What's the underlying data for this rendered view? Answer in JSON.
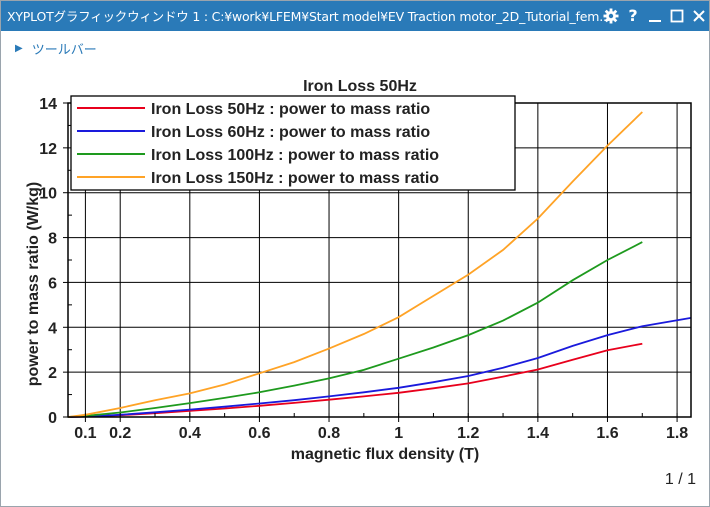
{
  "window": {
    "title": "XYPLOTグラフィックウィンドウ 1 : C:¥work¥LFEM¥Start model¥EV Traction motor_2D_Tutorial_fem...",
    "controls": {
      "settings_icon": "gear-icon",
      "help_label": "?",
      "minimize_icon": "minimize-icon",
      "maximize_icon": "maximize-icon",
      "close_icon": "close-icon"
    }
  },
  "toolbar": {
    "label": "ツールバー"
  },
  "pager": "1 / 1",
  "colors": {
    "titlebar": "#2a7ab8",
    "50Hz": "#e8001c",
    "60Hz": "#1a1adc",
    "100Hz": "#1e9a1e",
    "150Hz": "#ffa326"
  },
  "chart_data": {
    "type": "line",
    "title": "Iron Loss 50Hz",
    "xlabel": "magnetic flux density (T)",
    "ylabel": "power to mass ratio (W/kg)",
    "xlim": [
      0.05,
      1.84
    ],
    "ylim": [
      0,
      14
    ],
    "x_ticks": [
      0.1,
      0.2,
      0.4,
      0.6,
      0.8,
      1,
      1.2,
      1.4,
      1.6,
      1.8
    ],
    "x_tick_labels": [
      "0.1",
      "0.2",
      "0.4",
      "0.6",
      "0.8",
      "1",
      "1.2",
      "1.4",
      "1.6",
      "1.8"
    ],
    "y_ticks": [
      0,
      2,
      4,
      6,
      8,
      10,
      12,
      14
    ],
    "y_tick_labels": [
      "0",
      "2",
      "4",
      "6",
      "8",
      "10",
      "12",
      "14"
    ],
    "grid": true,
    "legend_position": "top-left",
    "series": [
      {
        "name": "Iron Loss 50Hz : power to mass ratio",
        "color": "#e8001c",
        "x": [
          0.05,
          0.1,
          0.2,
          0.3,
          0.4,
          0.5,
          0.6,
          0.7,
          0.8,
          0.9,
          1.0,
          1.1,
          1.2,
          1.3,
          1.4,
          1.5,
          1.6,
          1.7
        ],
        "y": [
          0.0,
          0.02,
          0.08,
          0.17,
          0.27,
          0.38,
          0.5,
          0.63,
          0.77,
          0.92,
          1.08,
          1.28,
          1.5,
          1.8,
          2.12,
          2.55,
          2.98,
          3.27
        ]
      },
      {
        "name": "Iron Loss 60Hz : power to mass ratio",
        "color": "#1a1adc",
        "x": [
          0.05,
          0.1,
          0.2,
          0.3,
          0.4,
          0.5,
          0.6,
          0.7,
          0.8,
          0.9,
          1.0,
          1.1,
          1.2,
          1.3,
          1.4,
          1.5,
          1.6,
          1.7,
          1.84
        ],
        "y": [
          0.0,
          0.02,
          0.1,
          0.21,
          0.33,
          0.46,
          0.6,
          0.75,
          0.92,
          1.1,
          1.3,
          1.55,
          1.83,
          2.2,
          2.63,
          3.17,
          3.65,
          4.05,
          4.42
        ]
      },
      {
        "name": "Iron Loss 100Hz : power to mass ratio",
        "color": "#1e9a1e",
        "x": [
          0.05,
          0.1,
          0.2,
          0.3,
          0.4,
          0.5,
          0.6,
          0.7,
          0.8,
          0.9,
          1.0,
          1.1,
          1.2,
          1.3,
          1.4,
          1.5,
          1.6,
          1.7
        ],
        "y": [
          0.0,
          0.05,
          0.2,
          0.4,
          0.62,
          0.85,
          1.1,
          1.4,
          1.72,
          2.1,
          2.6,
          3.1,
          3.65,
          4.3,
          5.1,
          6.1,
          7.0,
          7.8
        ]
      },
      {
        "name": "Iron Loss 150Hz : power to mass ratio",
        "color": "#ffa326",
        "x": [
          0.05,
          0.1,
          0.2,
          0.3,
          0.4,
          0.5,
          0.6,
          0.7,
          0.8,
          0.9,
          1.0,
          1.1,
          1.2,
          1.3,
          1.4,
          1.5,
          1.6,
          1.7
        ],
        "y": [
          0.0,
          0.1,
          0.4,
          0.75,
          1.05,
          1.45,
          1.95,
          2.45,
          3.05,
          3.7,
          4.45,
          5.4,
          6.35,
          7.45,
          8.85,
          10.5,
          12.1,
          13.6
        ]
      }
    ]
  }
}
